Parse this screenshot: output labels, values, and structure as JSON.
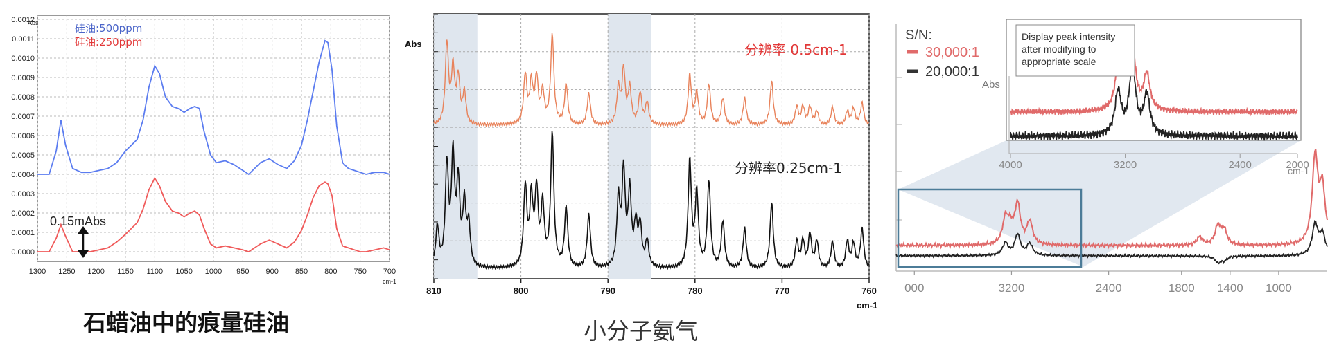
{
  "captions": {
    "left": "石蜡油中的痕量硅油",
    "middle": "小分子氨气"
  },
  "colors": {
    "blue": "#5b7cf0",
    "red": "#f05a5a",
    "orange": "#e8825a",
    "black": "#111111",
    "band": "#dfe6ee"
  },
  "chart_data": [
    {
      "type": "line",
      "title": "",
      "xlabel": "cm-1",
      "ylabel": "Abs",
      "xlim": [
        1300,
        700
      ],
      "ylim": [
        -5e-05,
        0.0012
      ],
      "xticks": [
        "1300",
        "1250",
        "1200",
        "1150",
        "1100",
        "1050",
        "1000",
        "950",
        "900",
        "850",
        "800",
        "750",
        "700"
      ],
      "yticks": [
        "0.0000",
        "0.0001",
        "0.0002",
        "0.0003",
        "0.0004",
        "0.0005",
        "0.0006",
        "0.0007",
        "0.0008",
        "0.0009",
        "0.0010",
        "0.0011",
        "0.0012"
      ],
      "grid": true,
      "legend": [
        "硅油:500ppm",
        "硅油:250ppm"
      ],
      "annotation": "0.15mAbs",
      "series": [
        {
          "name": "硅油:500ppm",
          "x": [
            1300,
            1280,
            1268,
            1260,
            1252,
            1240,
            1225,
            1210,
            1195,
            1180,
            1165,
            1150,
            1140,
            1130,
            1120,
            1110,
            1100,
            1092,
            1082,
            1070,
            1060,
            1050,
            1040,
            1032,
            1024,
            1016,
            1005,
            995,
            980,
            965,
            950,
            940,
            930,
            920,
            905,
            890,
            875,
            862,
            850,
            840,
            830,
            820,
            810,
            805,
            798,
            790,
            780,
            770,
            760,
            750,
            740,
            725,
            710,
            700
          ],
          "y": [
            0.0004,
            0.0004,
            0.00052,
            0.00068,
            0.00055,
            0.00043,
            0.00041,
            0.00041,
            0.00042,
            0.00043,
            0.00046,
            0.00052,
            0.00055,
            0.00058,
            0.00068,
            0.00085,
            0.00096,
            0.00092,
            0.0008,
            0.00075,
            0.00074,
            0.00072,
            0.00074,
            0.00075,
            0.00074,
            0.00062,
            0.0005,
            0.00046,
            0.00047,
            0.00045,
            0.00042,
            0.0004,
            0.00043,
            0.00046,
            0.00048,
            0.00045,
            0.00043,
            0.00047,
            0.00055,
            0.00068,
            0.00083,
            0.00098,
            0.00109,
            0.00108,
            0.00094,
            0.00065,
            0.00046,
            0.00043,
            0.00042,
            0.00041,
            0.0004,
            0.00041,
            0.00041,
            0.0004
          ]
        },
        {
          "name": "硅油:250ppm",
          "x": [
            1300,
            1280,
            1268,
            1260,
            1252,
            1240,
            1225,
            1210,
            1195,
            1180,
            1165,
            1150,
            1140,
            1130,
            1120,
            1110,
            1100,
            1092,
            1082,
            1070,
            1060,
            1050,
            1040,
            1032,
            1024,
            1016,
            1005,
            995,
            980,
            965,
            950,
            940,
            930,
            920,
            905,
            890,
            875,
            862,
            850,
            840,
            830,
            820,
            810,
            805,
            798,
            790,
            780,
            770,
            760,
            750,
            740,
            725,
            710,
            700
          ],
          "y": [
            0.0,
            0.0,
            7e-05,
            0.00014,
            8e-05,
            0.0,
            0.0,
            0.0,
            1e-05,
            2e-05,
            5e-05,
            9e-05,
            0.00012,
            0.00015,
            0.00022,
            0.00032,
            0.00038,
            0.00034,
            0.00026,
            0.00021,
            0.0002,
            0.00018,
            0.0002,
            0.00021,
            0.00019,
            0.00012,
            4e-05,
            2e-05,
            3e-05,
            2e-05,
            1e-05,
            0.0,
            2e-05,
            4e-05,
            6e-05,
            4e-05,
            2e-05,
            5e-05,
            0.00011,
            0.00019,
            0.00028,
            0.00034,
            0.00036,
            0.00035,
            0.00029,
            0.00012,
            3e-05,
            2e-05,
            1e-05,
            0.0,
            0.0,
            1e-05,
            2e-05,
            1e-05
          ]
        }
      ]
    },
    {
      "type": "line",
      "title": "",
      "xlabel": "cm-1",
      "ylabel": "Abs",
      "xlim": [
        810,
        760
      ],
      "ylim": [
        0,
        1
      ],
      "xticks": [
        "810",
        "800",
        "790",
        "780",
        "770",
        "760"
      ],
      "grid": true,
      "bands": [
        [
          810,
          805
        ],
        [
          790,
          785
        ]
      ],
      "series": [
        {
          "name": "分辨率 0.5cm-1",
          "baseline": 0.58,
          "scale": 0.35,
          "peaks": [
            [
              808.5,
              0.9
            ],
            [
              807.8,
              0.6
            ],
            [
              807.2,
              0.5
            ],
            [
              806.5,
              0.35
            ],
            [
              799.5,
              0.55
            ],
            [
              798.8,
              0.45
            ],
            [
              798.2,
              0.5
            ],
            [
              797.5,
              0.35
            ],
            [
              796.4,
              1.0
            ],
            [
              794.8,
              0.45
            ],
            [
              792.2,
              0.35
            ],
            [
              788.8,
              0.4
            ],
            [
              788.2,
              0.6
            ],
            [
              787.5,
              0.4
            ],
            [
              786.3,
              0.35
            ],
            [
              785.5,
              0.25
            ],
            [
              780.6,
              0.55
            ],
            [
              779.8,
              0.35
            ],
            [
              778.4,
              0.45
            ],
            [
              776.8,
              0.3
            ],
            [
              774.3,
              0.3
            ],
            [
              771.2,
              0.5
            ],
            [
              768.3,
              0.2
            ],
            [
              767.6,
              0.2
            ],
            [
              766.8,
              0.2
            ],
            [
              766,
              0.15
            ],
            [
              764.2,
              0.2
            ],
            [
              762.5,
              0.15
            ],
            [
              761.8,
              0.18
            ],
            [
              760.8,
              0.25
            ]
          ]
        },
        {
          "name": "分辨率0.25cm-1",
          "baseline": 0.02,
          "scale": 0.52,
          "peaks": [
            [
              809.6,
              0.3
            ],
            [
              808.5,
              0.75
            ],
            [
              807.8,
              0.8
            ],
            [
              807.2,
              0.6
            ],
            [
              806.5,
              0.45
            ],
            [
              806,
              0.3
            ],
            [
              799.5,
              0.6
            ],
            [
              798.8,
              0.5
            ],
            [
              798.2,
              0.55
            ],
            [
              797.5,
              0.45
            ],
            [
              796.4,
              1.0
            ],
            [
              794.8,
              0.45
            ],
            [
              792.2,
              0.4
            ],
            [
              788.8,
              0.5
            ],
            [
              788.2,
              0.7
            ],
            [
              787.5,
              0.55
            ],
            [
              786.8,
              0.3
            ],
            [
              786.3,
              0.3
            ],
            [
              785.5,
              0.2
            ],
            [
              780.6,
              0.8
            ],
            [
              779.8,
              0.55
            ],
            [
              778.4,
              0.65
            ],
            [
              776.8,
              0.35
            ],
            [
              774.3,
              0.3
            ],
            [
              771.2,
              0.5
            ],
            [
              768.3,
              0.2
            ],
            [
              767.6,
              0.2
            ],
            [
              766.8,
              0.25
            ],
            [
              766,
              0.2
            ],
            [
              764.2,
              0.2
            ],
            [
              762.5,
              0.2
            ],
            [
              761.8,
              0.18
            ],
            [
              760.8,
              0.3
            ]
          ]
        }
      ]
    },
    {
      "type": "line",
      "title": "",
      "xlabel": "",
      "ylabel": "",
      "xlim": [
        4000,
        600
      ],
      "ylim": [
        0,
        1
      ],
      "xticks": [
        "000",
        "3200",
        "2400",
        "1800",
        "1400",
        "1000"
      ],
      "legend_title": "S/N:",
      "legend": [
        "30,000:1",
        "20,000:1"
      ],
      "series": [
        {
          "name": "30,000:1",
          "baseline": 0.35,
          "noise": 0.03,
          "peaks": [
            [
              3250,
              0.6
            ],
            [
              3210,
              0.35
            ],
            [
              3150,
              0.95
            ],
            [
              3050,
              0.55
            ],
            [
              1650,
              0.2
            ],
            [
              1500,
              0.45
            ],
            [
              1450,
              0.35
            ],
            [
              700,
              2.1
            ],
            [
              640,
              1.3
            ]
          ]
        },
        {
          "name": "20,000:1",
          "baseline": 0.1,
          "noise": 0.02,
          "peaks": [
            [
              3250,
              0.3
            ],
            [
              3150,
              0.5
            ],
            [
              3050,
              0.28
            ],
            [
              1500,
              -0.15
            ],
            [
              1450,
              -0.1
            ],
            [
              700,
              0.75
            ],
            [
              640,
              0.5
            ]
          ]
        }
      ],
      "inset": {
        "note": [
          "Display peak intensity",
          "after modifying to",
          "appropriate scale"
        ],
        "ylabel": "Abs",
        "xlabel": "cm-1",
        "xlim": [
          4000,
          2000
        ],
        "xticks": [
          "4000",
          "3200",
          "2400",
          "2000"
        ]
      }
    }
  ]
}
